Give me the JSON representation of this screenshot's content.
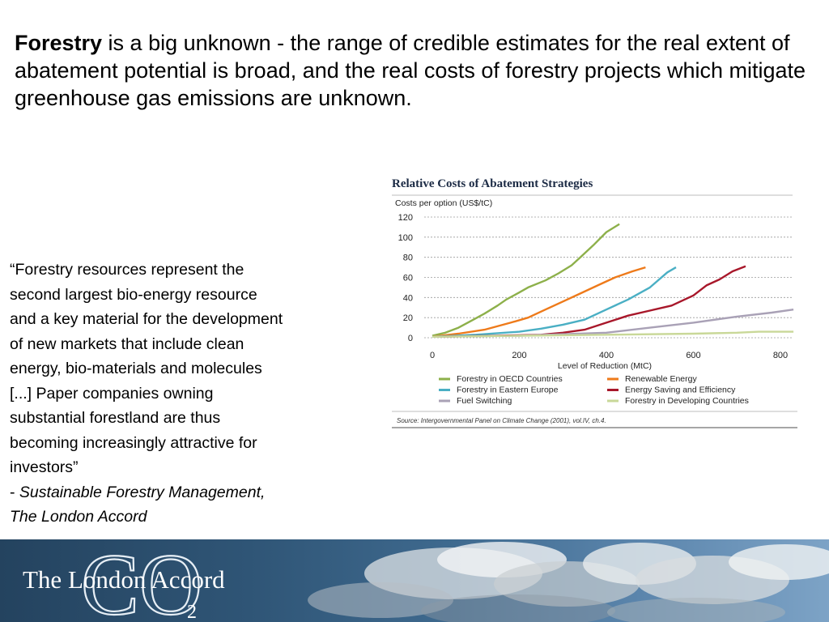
{
  "intro": {
    "lead": "Forestry",
    "rest": " is a big unknown - the range of credible estimates for the real extent of abatement potential is broad, and the real costs of forestry projects which mitigate greenhouse gas emissions are unknown."
  },
  "quote": {
    "lines": [
      "“Forestry resources represent the",
      "second largest bio-energy resource",
      "and a key material for the development",
      "of new markets that include clean",
      "energy, bio-materials and molecules",
      "[...] Paper companies owning",
      "substantial forestland are thus",
      "becoming increasingly attractive for",
      "investors”"
    ],
    "attribution_dash": "- ",
    "attribution_1": "Sustainable Forestry Management,",
    "attribution_2": "The London Accord"
  },
  "chart_data": {
    "type": "line",
    "title": "Relative Costs of Abatement Strategies",
    "ylabel": "Costs per option (US$/tC)",
    "xlabel": "Level of Reduction (MtC)",
    "xlim": [
      0,
      800
    ],
    "ylim": [
      0,
      120
    ],
    "xticks": [
      "0",
      "200",
      "400",
      "600",
      "800"
    ],
    "yticks": [
      "0",
      "20",
      "40",
      "60",
      "80",
      "100",
      "120"
    ],
    "grid": true,
    "legend_position": "bottom",
    "source": "Source: Intergovernmental Panel on Climate Change (2001), vol.IV, ch.4.",
    "series": [
      {
        "name": "Forestry in OECD Countries",
        "color": "#8db04a",
        "points": [
          [
            0,
            2
          ],
          [
            30,
            5
          ],
          [
            60,
            10
          ],
          [
            90,
            17
          ],
          [
            120,
            24
          ],
          [
            150,
            32
          ],
          [
            170,
            38
          ],
          [
            200,
            45
          ],
          [
            220,
            50
          ],
          [
            260,
            57
          ],
          [
            290,
            64
          ],
          [
            320,
            72
          ],
          [
            340,
            80
          ],
          [
            370,
            92
          ],
          [
            400,
            105
          ],
          [
            430,
            113
          ]
        ]
      },
      {
        "name": "Renewable Energy",
        "color": "#ee7a1a",
        "points": [
          [
            0,
            1
          ],
          [
            60,
            4
          ],
          [
            120,
            8
          ],
          [
            180,
            15
          ],
          [
            220,
            20
          ],
          [
            260,
            28
          ],
          [
            300,
            36
          ],
          [
            340,
            44
          ],
          [
            380,
            52
          ],
          [
            420,
            60
          ],
          [
            460,
            66
          ],
          [
            490,
            70
          ]
        ]
      },
      {
        "name": "Forestry in Eastern Europe",
        "color": "#4aafc4",
        "points": [
          [
            0,
            1
          ],
          [
            100,
            3
          ],
          [
            200,
            6
          ],
          [
            250,
            9
          ],
          [
            300,
            13
          ],
          [
            350,
            18
          ],
          [
            400,
            28
          ],
          [
            450,
            38
          ],
          [
            500,
            50
          ],
          [
            540,
            65
          ],
          [
            560,
            70
          ]
        ]
      },
      {
        "name": "Energy Saving and Efficiency",
        "color": "#a8172a",
        "points": [
          [
            0,
            1
          ],
          [
            150,
            2
          ],
          [
            250,
            3
          ],
          [
            300,
            5
          ],
          [
            350,
            8
          ],
          [
            400,
            15
          ],
          [
            450,
            22
          ],
          [
            500,
            27
          ],
          [
            550,
            32
          ],
          [
            600,
            42
          ],
          [
            630,
            52
          ],
          [
            660,
            58
          ],
          [
            690,
            66
          ],
          [
            720,
            71
          ]
        ]
      },
      {
        "name": "Fuel Switching",
        "color": "#a9a1b6",
        "points": [
          [
            0,
            1
          ],
          [
            200,
            2
          ],
          [
            400,
            5
          ],
          [
            500,
            10
          ],
          [
            600,
            15
          ],
          [
            700,
            21
          ],
          [
            780,
            25
          ],
          [
            830,
            28
          ]
        ]
      },
      {
        "name": "Forestry in Developing Countries",
        "color": "#c9d898",
        "points": [
          [
            0,
            1
          ],
          [
            200,
            2
          ],
          [
            400,
            3
          ],
          [
            600,
            4
          ],
          [
            700,
            5
          ],
          [
            750,
            6
          ],
          [
            830,
            6
          ]
        ]
      }
    ]
  },
  "banner": {
    "brand": "The London Accord",
    "co_mark": "CO",
    "subscript": "2"
  }
}
